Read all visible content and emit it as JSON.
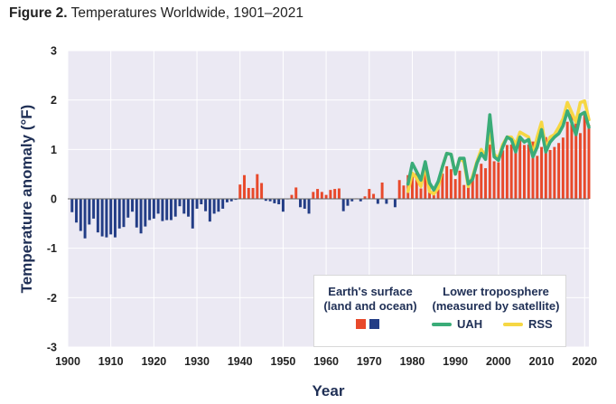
{
  "figure": {
    "label": "Figure 2.",
    "title": "Temperatures Worldwide, 1901–2021"
  },
  "colors": {
    "positive_bar": "#e8492b",
    "negative_bar": "#233d86",
    "uah": "#3aac78",
    "rss": "#f6d743",
    "plot_bg": "#ebe9f3",
    "grid": "#ffffff",
    "zero_line": "#666666"
  },
  "legend": {
    "surface_title": "Earth's surface\n(land and ocean)",
    "troposphere_title": "Lower troposphere\n(measured by satellite)",
    "uah_label": "UAH",
    "rss_label": "RSS"
  },
  "chart_data": {
    "type": "bar",
    "title": "Temperatures Worldwide, 1901–2021",
    "xlabel": "Year",
    "ylabel": "Temperature anomaly (°F)",
    "xlim": [
      1900,
      2021
    ],
    "ylim": [
      -3,
      3
    ],
    "x_ticks": [
      1900,
      1910,
      1920,
      1930,
      1940,
      1950,
      1960,
      1970,
      1980,
      1990,
      2000,
      2010,
      2020
    ],
    "y_ticks": [
      -3,
      -2,
      -1,
      0,
      1,
      2,
      3
    ],
    "grid": true,
    "legend_position": "bottom-right",
    "series": [
      {
        "name": "Earth's surface (land and ocean)",
        "kind": "bar",
        "start_year": 1901,
        "values": [
          -0.27,
          -0.48,
          -0.65,
          -0.8,
          -0.52,
          -0.4,
          -0.68,
          -0.76,
          -0.78,
          -0.72,
          -0.78,
          -0.6,
          -0.57,
          -0.38,
          -0.26,
          -0.58,
          -0.7,
          -0.56,
          -0.43,
          -0.4,
          -0.3,
          -0.45,
          -0.43,
          -0.43,
          -0.36,
          -0.15,
          -0.3,
          -0.36,
          -0.6,
          -0.2,
          -0.11,
          -0.25,
          -0.46,
          -0.3,
          -0.26,
          -0.2,
          -0.07,
          -0.05,
          -0.02,
          0.29,
          0.48,
          0.22,
          0.22,
          0.5,
          0.32,
          -0.04,
          -0.05,
          -0.09,
          -0.11,
          -0.26,
          -0.01,
          0.08,
          0.23,
          -0.17,
          -0.2,
          -0.3,
          0.14,
          0.2,
          0.14,
          0.08,
          0.18,
          0.2,
          0.21,
          -0.25,
          -0.14,
          -0.05,
          0.01,
          -0.05,
          0.05,
          0.2,
          0.1,
          -0.1,
          0.33,
          -0.1,
          0.01,
          -0.17,
          0.38,
          0.27,
          0.48,
          0.49,
          0.55,
          0.21,
          0.59,
          0.25,
          0.23,
          0.31,
          0.51,
          0.66,
          0.6,
          0.4,
          0.57,
          0.28,
          0.35,
          0.38,
          0.5,
          0.71,
          0.62,
          1.1,
          0.76,
          0.74,
          0.98,
          1.09,
          1.1,
          1.06,
          1.23,
          1.09,
          1.1,
          1.16,
          0.87,
          1.05,
          1.25,
          0.99,
          1.05,
          1.13,
          1.24,
          1.56,
          1.75,
          1.54,
          1.33,
          1.7,
          1.5
        ]
      },
      {
        "name": "UAH",
        "kind": "line",
        "start_year": 1979,
        "values": [
          0.3,
          0.72,
          0.55,
          0.38,
          0.75,
          0.32,
          0.18,
          0.35,
          0.65,
          0.92,
          0.9,
          0.5,
          0.82,
          0.82,
          0.3,
          0.4,
          0.72,
          0.92,
          0.8,
          1.7,
          0.85,
          0.78,
          1.05,
          1.25,
          1.2,
          0.95,
          1.25,
          1.15,
          1.2,
          0.85,
          1.05,
          1.4,
          0.95,
          1.15,
          1.25,
          1.32,
          1.48,
          1.78,
          1.55,
          1.3,
          1.7,
          1.75,
          1.45
        ]
      },
      {
        "name": "RSS",
        "kind": "line",
        "start_year": 1979,
        "values": [
          0.15,
          0.52,
          0.42,
          0.25,
          0.7,
          0.15,
          0.1,
          0.22,
          0.65,
          0.92,
          0.9,
          0.5,
          0.82,
          0.75,
          0.25,
          0.45,
          0.75,
          1.0,
          0.85,
          1.4,
          0.9,
          0.82,
          1.1,
          1.25,
          1.25,
          1.1,
          1.35,
          1.3,
          1.25,
          0.9,
          1.25,
          1.55,
          1.0,
          1.25,
          1.3,
          1.45,
          1.62,
          1.95,
          1.75,
          1.55,
          1.95,
          1.98,
          1.6
        ]
      }
    ]
  }
}
